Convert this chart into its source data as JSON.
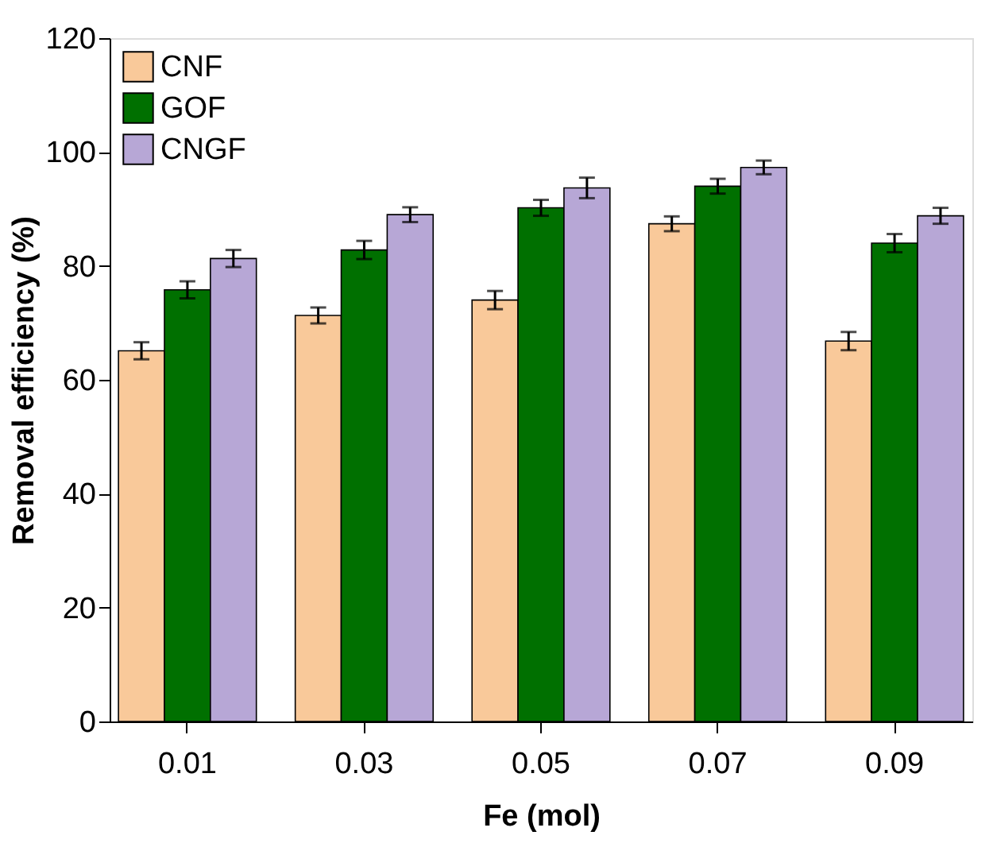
{
  "chart_data": {
    "type": "bar",
    "xlabel": "Fe (mol)",
    "ylabel": "Removal efficiency (%)",
    "categories": [
      "0.01",
      "0.03",
      "0.05",
      "0.07",
      "0.09"
    ],
    "series": [
      {
        "name": "CNF",
        "color": "#f9c99a",
        "values": [
          65.1,
          71.3,
          74.0,
          87.4,
          66.8
        ],
        "errors": [
          1.5,
          1.4,
          1.6,
          1.3,
          1.6
        ]
      },
      {
        "name": "GOF",
        "color": "#007000",
        "values": [
          75.8,
          82.8,
          90.2,
          94.0,
          84.0
        ],
        "errors": [
          1.5,
          1.6,
          1.4,
          1.3,
          1.6
        ]
      },
      {
        "name": "CNGF",
        "color": "#b7a7d6",
        "values": [
          81.3,
          89.0,
          93.7,
          97.3,
          88.8
        ],
        "errors": [
          1.5,
          1.3,
          1.8,
          1.2,
          1.4
        ]
      }
    ],
    "ylim": [
      0,
      120
    ],
    "yticks": [
      0,
      20,
      40,
      60,
      80,
      100,
      120
    ],
    "grid": false,
    "legend": "top left"
  }
}
